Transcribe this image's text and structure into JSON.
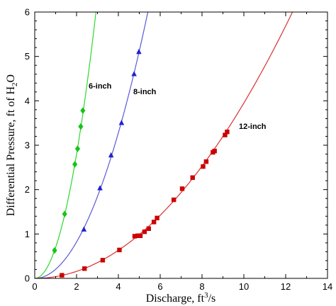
{
  "chart_data": {
    "type": "scatter",
    "xlim": [
      0,
      14
    ],
    "ylim": [
      0,
      6
    ],
    "x_ticks": [
      0,
      2,
      4,
      6,
      8,
      10,
      12,
      14
    ],
    "y_ticks": [
      0,
      1,
      2,
      3,
      4,
      5,
      6
    ],
    "x_tick_labels": [
      "0",
      "2",
      "4",
      "6",
      "8",
      "10",
      "12",
      "14"
    ],
    "y_tick_labels": [
      "0",
      "1",
      "2",
      "3",
      "4",
      "5",
      "6"
    ],
    "xlabel": {
      "main": "Discharge, ft",
      "sup": "3",
      "tail": "/s"
    },
    "ylabel": {
      "main": "Differential Pressure, ft of H",
      "sub": "2",
      "tail": "O"
    },
    "grid": false,
    "series": [
      {
        "name": "6-inch",
        "color": "#2ed82e",
        "marker_color": "#19c219",
        "marker": "diamond",
        "fit_coefficient": 0.7,
        "points": [
          {
            "x": 0.95,
            "y": 0.63
          },
          {
            "x": 1.43,
            "y": 1.45
          },
          {
            "x": 1.92,
            "y": 2.57
          },
          {
            "x": 2.05,
            "y": 2.92
          },
          {
            "x": 2.2,
            "y": 3.42
          },
          {
            "x": 2.3,
            "y": 3.78
          }
        ]
      },
      {
        "name": "8-inch",
        "color": "#5a5ad6",
        "marker_color": "#2222cc",
        "marker": "triangle",
        "fit_coefficient": 0.205,
        "points": [
          {
            "x": 2.35,
            "y": 1.1
          },
          {
            "x": 3.12,
            "y": 2.03
          },
          {
            "x": 3.65,
            "y": 2.77
          },
          {
            "x": 4.15,
            "y": 3.5
          },
          {
            "x": 4.75,
            "y": 4.6
          },
          {
            "x": 4.98,
            "y": 5.1
          }
        ]
      },
      {
        "name": "12-inch",
        "color": "#d93030",
        "marker_color": "#cc0000",
        "marker": "square",
        "fit_coefficient": 0.0395,
        "points": [
          {
            "x": 1.3,
            "y": 0.07
          },
          {
            "x": 2.38,
            "y": 0.22
          },
          {
            "x": 3.25,
            "y": 0.41
          },
          {
            "x": 4.05,
            "y": 0.64
          },
          {
            "x": 4.78,
            "y": 0.95
          },
          {
            "x": 4.93,
            "y": 0.96
          },
          {
            "x": 5.05,
            "y": 0.96
          },
          {
            "x": 5.25,
            "y": 1.05
          },
          {
            "x": 5.45,
            "y": 1.12
          },
          {
            "x": 5.7,
            "y": 1.27
          },
          {
            "x": 5.85,
            "y": 1.36
          },
          {
            "x": 6.65,
            "y": 1.77
          },
          {
            "x": 7.05,
            "y": 2.02
          },
          {
            "x": 7.55,
            "y": 2.27
          },
          {
            "x": 8.05,
            "y": 2.52
          },
          {
            "x": 8.2,
            "y": 2.63
          },
          {
            "x": 8.52,
            "y": 2.84
          },
          {
            "x": 8.6,
            "y": 2.87
          },
          {
            "x": 9.1,
            "y": 3.23
          },
          {
            "x": 9.2,
            "y": 3.3
          }
        ]
      }
    ]
  }
}
